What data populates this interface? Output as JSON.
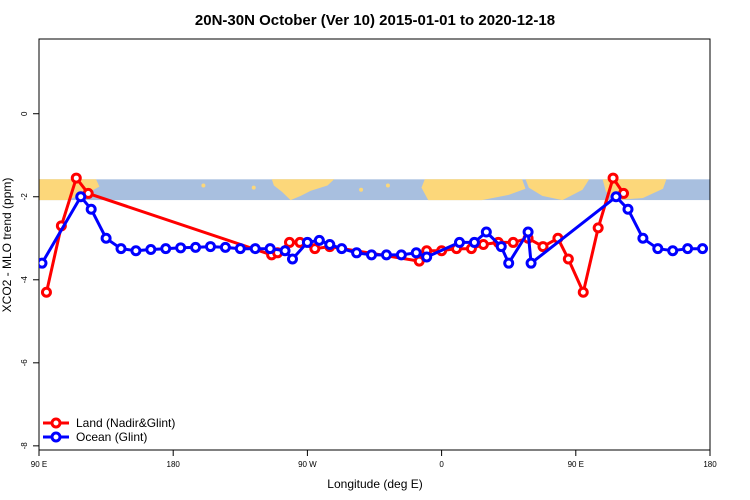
{
  "chart_data": {
    "type": "line",
    "title": "20N-30N October (Ver 10)   2015-01-01 to 2020-12-18",
    "xlabel": "Longitude (deg E)",
    "ylabel": "XCO2 - MLO trend (ppm)",
    "xlim": [
      90,
      540
    ],
    "ylim": [
      -8.1,
      1.8
    ],
    "x_ticks": [
      {
        "value": 90,
        "label": "90 E"
      },
      {
        "value": 180,
        "label": "180"
      },
      {
        "value": 270,
        "label": "90 W"
      },
      {
        "value": 360,
        "label": "0"
      },
      {
        "value": 450,
        "label": "90 E"
      },
      {
        "value": 540,
        "label": "180"
      }
    ],
    "y_ticks": [
      {
        "value": 0,
        "label": "0"
      },
      {
        "value": -2,
        "label": "-2"
      },
      {
        "value": -4,
        "label": "-4"
      },
      {
        "value": -6,
        "label": "-6"
      },
      {
        "value": -8,
        "label": "-8"
      }
    ],
    "map_band": {
      "y_top": -1.58,
      "y_bottom": -2.08,
      "ocean_color": "#a8bfdf",
      "land_color": "#fcd77a"
    },
    "legend_position": "bottom-left",
    "series": [
      {
        "name": "Land (Nadir&Glint)",
        "color": "#ff0000",
        "points": [
          [
            95,
            -4.3
          ],
          [
            105,
            -2.7
          ],
          [
            115,
            -1.55
          ],
          [
            123,
            -1.92
          ],
          [
            246,
            -3.4
          ],
          [
            250,
            -3.35
          ],
          [
            258,
            -3.1
          ],
          [
            265,
            -3.1
          ],
          [
            275,
            -3.25
          ],
          [
            285,
            -3.2
          ],
          [
            345,
            -3.55
          ],
          [
            350,
            -3.3
          ],
          [
            360,
            -3.3
          ],
          [
            370,
            -3.25
          ],
          [
            380,
            -3.25
          ],
          [
            388,
            -3.15
          ],
          [
            398,
            -3.1
          ],
          [
            408,
            -3.1
          ],
          [
            418,
            -3.0
          ],
          [
            428,
            -3.2
          ],
          [
            438,
            -3.0
          ],
          [
            445,
            -3.5
          ],
          [
            455,
            -4.3
          ],
          [
            465,
            -2.75
          ],
          [
            475,
            -1.55
          ],
          [
            482,
            -1.92
          ]
        ]
      },
      {
        "name": "Ocean (Glint)",
        "color": "#0000ff",
        "points": [
          [
            92,
            -3.6
          ],
          [
            118,
            -2.0
          ],
          [
            125,
            -2.3
          ],
          [
            135,
            -3.0
          ],
          [
            145,
            -3.25
          ],
          [
            155,
            -3.3
          ],
          [
            165,
            -3.27
          ],
          [
            175,
            -3.25
          ],
          [
            185,
            -3.23
          ],
          [
            195,
            -3.22
          ],
          [
            205,
            -3.2
          ],
          [
            215,
            -3.22
          ],
          [
            225,
            -3.25
          ],
          [
            235,
            -3.25
          ],
          [
            245,
            -3.25
          ],
          [
            255,
            -3.3
          ],
          [
            260,
            -3.5
          ],
          [
            270,
            -3.1
          ],
          [
            278,
            -3.05
          ],
          [
            285,
            -3.15
          ],
          [
            293,
            -3.25
          ],
          [
            303,
            -3.35
          ],
          [
            313,
            -3.4
          ],
          [
            323,
            -3.4
          ],
          [
            333,
            -3.4
          ],
          [
            343,
            -3.35
          ],
          [
            350,
            -3.45
          ],
          [
            372,
            -3.1
          ],
          [
            382,
            -3.1
          ],
          [
            390,
            -2.85
          ],
          [
            400,
            -3.2
          ],
          [
            405,
            -3.6
          ],
          [
            418,
            -2.85
          ],
          [
            420,
            -3.6
          ],
          [
            477,
            -2.0
          ],
          [
            485,
            -2.3
          ],
          [
            495,
            -3.0
          ],
          [
            505,
            -3.25
          ],
          [
            515,
            -3.3
          ],
          [
            525,
            -3.25
          ],
          [
            535,
            -3.25
          ]
        ]
      }
    ]
  }
}
